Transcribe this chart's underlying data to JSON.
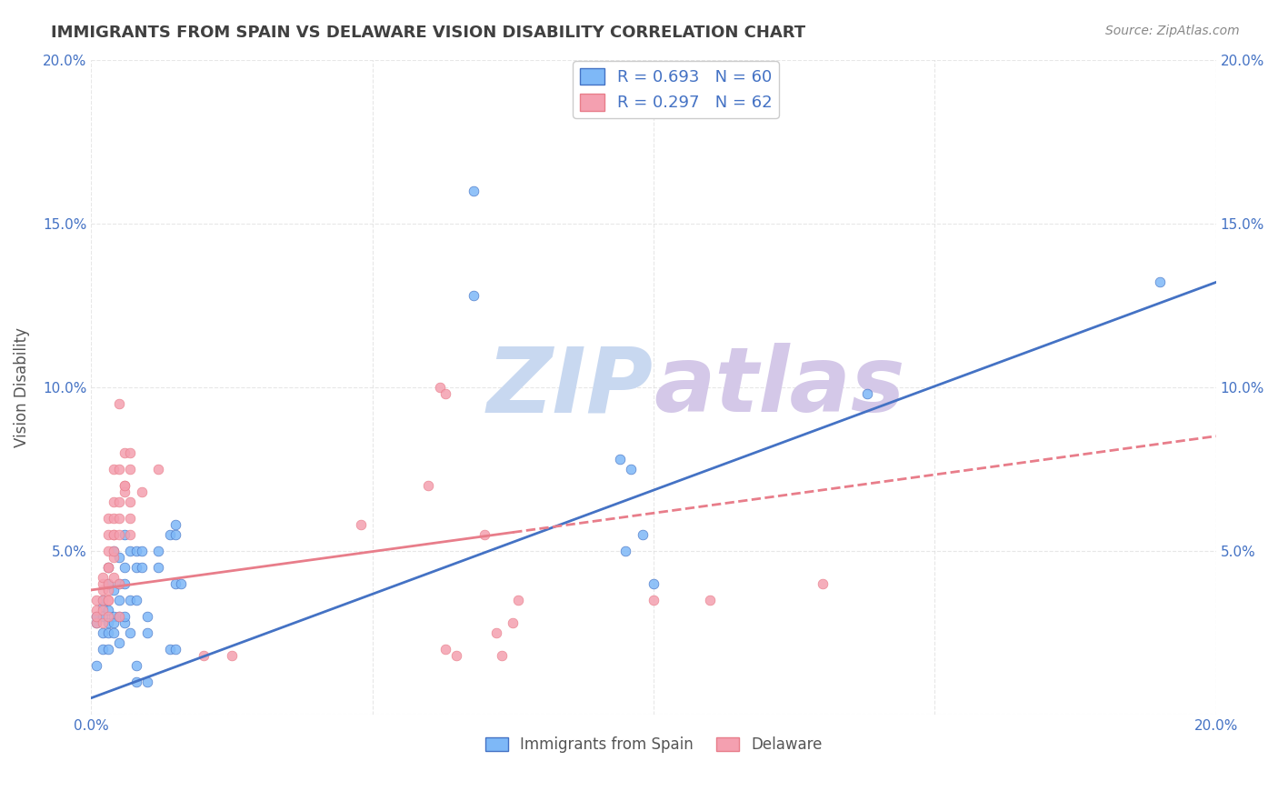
{
  "title": "IMMIGRANTS FROM SPAIN VS DELAWARE VISION DISABILITY CORRELATION CHART",
  "source": "Source: ZipAtlas.com",
  "ylabel": "Vision Disability",
  "legend_labels": [
    "Immigrants from Spain",
    "Delaware"
  ],
  "xlim": [
    0.0,
    0.2
  ],
  "ylim": [
    0.0,
    0.2
  ],
  "blue_color": "#7EB8F7",
  "pink_color": "#F4A0B0",
  "blue_line_color": "#4472C4",
  "pink_line_color": "#E87D8A",
  "title_color": "#404040",
  "axis_label_color": "#4472C4",
  "watermark_color_zip": "#C8D8F0",
  "watermark_color_atlas": "#D4C8E8",
  "blue_scatter": [
    [
      0.001,
      0.028
    ],
    [
      0.001,
      0.015
    ],
    [
      0.001,
      0.03
    ],
    [
      0.002,
      0.033
    ],
    [
      0.002,
      0.025
    ],
    [
      0.002,
      0.02
    ],
    [
      0.002,
      0.03
    ],
    [
      0.002,
      0.035
    ],
    [
      0.003,
      0.025
    ],
    [
      0.003,
      0.028
    ],
    [
      0.003,
      0.032
    ],
    [
      0.003,
      0.04
    ],
    [
      0.003,
      0.045
    ],
    [
      0.003,
      0.02
    ],
    [
      0.004,
      0.038
    ],
    [
      0.004,
      0.05
    ],
    [
      0.004,
      0.03
    ],
    [
      0.004,
      0.028
    ],
    [
      0.004,
      0.025
    ],
    [
      0.005,
      0.048
    ],
    [
      0.005,
      0.04
    ],
    [
      0.005,
      0.035
    ],
    [
      0.005,
      0.03
    ],
    [
      0.005,
      0.022
    ],
    [
      0.006,
      0.045
    ],
    [
      0.006,
      0.04
    ],
    [
      0.006,
      0.028
    ],
    [
      0.006,
      0.03
    ],
    [
      0.006,
      0.055
    ],
    [
      0.007,
      0.035
    ],
    [
      0.007,
      0.025
    ],
    [
      0.007,
      0.05
    ],
    [
      0.008,
      0.035
    ],
    [
      0.008,
      0.05
    ],
    [
      0.008,
      0.045
    ],
    [
      0.008,
      0.015
    ],
    [
      0.008,
      0.01
    ],
    [
      0.009,
      0.045
    ],
    [
      0.009,
      0.05
    ],
    [
      0.01,
      0.03
    ],
    [
      0.01,
      0.01
    ],
    [
      0.01,
      0.025
    ],
    [
      0.012,
      0.05
    ],
    [
      0.012,
      0.045
    ],
    [
      0.014,
      0.055
    ],
    [
      0.014,
      0.02
    ],
    [
      0.015,
      0.055
    ],
    [
      0.015,
      0.04
    ],
    [
      0.015,
      0.058
    ],
    [
      0.015,
      0.02
    ],
    [
      0.016,
      0.04
    ],
    [
      0.068,
      0.16
    ],
    [
      0.068,
      0.128
    ],
    [
      0.094,
      0.078
    ],
    [
      0.095,
      0.05
    ],
    [
      0.096,
      0.075
    ],
    [
      0.098,
      0.055
    ],
    [
      0.1,
      0.04
    ],
    [
      0.138,
      0.098
    ],
    [
      0.19,
      0.132
    ]
  ],
  "pink_scatter": [
    [
      0.001,
      0.035
    ],
    [
      0.001,
      0.032
    ],
    [
      0.001,
      0.028
    ],
    [
      0.001,
      0.03
    ],
    [
      0.002,
      0.038
    ],
    [
      0.002,
      0.04
    ],
    [
      0.002,
      0.035
    ],
    [
      0.002,
      0.032
    ],
    [
      0.002,
      0.042
    ],
    [
      0.002,
      0.028
    ],
    [
      0.003,
      0.05
    ],
    [
      0.003,
      0.055
    ],
    [
      0.003,
      0.045
    ],
    [
      0.003,
      0.038
    ],
    [
      0.003,
      0.035
    ],
    [
      0.003,
      0.04
    ],
    [
      0.003,
      0.03
    ],
    [
      0.003,
      0.035
    ],
    [
      0.003,
      0.06
    ],
    [
      0.003,
      0.045
    ],
    [
      0.004,
      0.055
    ],
    [
      0.004,
      0.06
    ],
    [
      0.004,
      0.075
    ],
    [
      0.004,
      0.048
    ],
    [
      0.004,
      0.05
    ],
    [
      0.004,
      0.065
    ],
    [
      0.004,
      0.055
    ],
    [
      0.004,
      0.042
    ],
    [
      0.005,
      0.065
    ],
    [
      0.005,
      0.06
    ],
    [
      0.005,
      0.055
    ],
    [
      0.005,
      0.03
    ],
    [
      0.005,
      0.04
    ],
    [
      0.005,
      0.075
    ],
    [
      0.005,
      0.095
    ],
    [
      0.006,
      0.07
    ],
    [
      0.006,
      0.068
    ],
    [
      0.006,
      0.07
    ],
    [
      0.006,
      0.08
    ],
    [
      0.007,
      0.065
    ],
    [
      0.007,
      0.075
    ],
    [
      0.007,
      0.08
    ],
    [
      0.007,
      0.055
    ],
    [
      0.007,
      0.06
    ],
    [
      0.009,
      0.068
    ],
    [
      0.012,
      0.075
    ],
    [
      0.02,
      0.018
    ],
    [
      0.025,
      0.018
    ],
    [
      0.048,
      0.058
    ],
    [
      0.06,
      0.07
    ],
    [
      0.062,
      0.1
    ],
    [
      0.063,
      0.098
    ],
    [
      0.063,
      0.02
    ],
    [
      0.065,
      0.018
    ],
    [
      0.07,
      0.055
    ],
    [
      0.072,
      0.025
    ],
    [
      0.073,
      0.018
    ],
    [
      0.075,
      0.028
    ],
    [
      0.076,
      0.035
    ],
    [
      0.1,
      0.035
    ],
    [
      0.11,
      0.035
    ],
    [
      0.13,
      0.04
    ]
  ],
  "blue_trend": {
    "x_start": 0.0,
    "y_start": 0.005,
    "x_end": 0.2,
    "y_end": 0.132
  },
  "pink_trend": {
    "x_start": 0.0,
    "y_start": 0.038,
    "x_end": 0.2,
    "y_end": 0.085
  },
  "pink_trend_dashed_start": 0.075
}
